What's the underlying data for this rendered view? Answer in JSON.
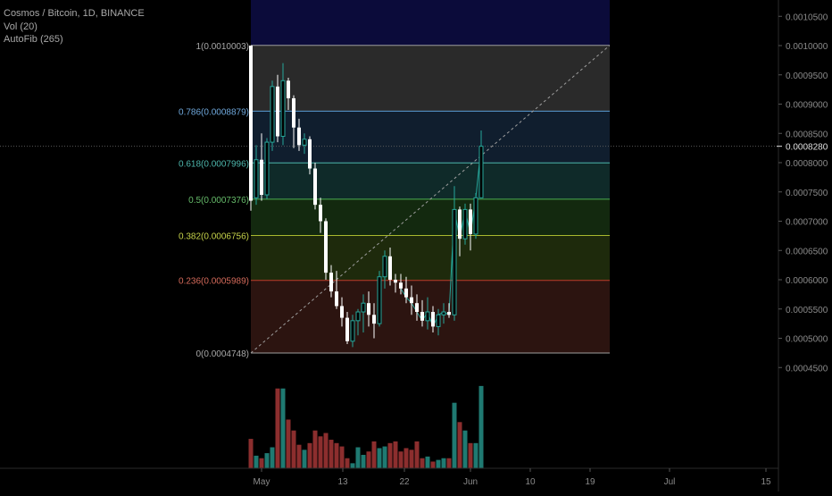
{
  "legend": {
    "symbol_line": "Cosmos / Bitcoin, 1D, BINANCE",
    "volume_line": "Vol (20)",
    "autofib_line": "AutoFib (265)"
  },
  "colors": {
    "background": "#000000",
    "candle_up": "#26a69a",
    "candle_down": "#ffffff",
    "volume_up": "#1f7a72",
    "volume_down": "#8c2e2e",
    "axis_text": "#8a8a8a"
  },
  "chart_data": {
    "type": "candlestick",
    "symbol": "Cosmos / Bitcoin",
    "interval": "1D",
    "exchange": "BINANCE",
    "ylim": [
      0.00042,
      0.00106
    ],
    "y_ticks": [
      "0.0004500",
      "0.0005000",
      "0.0005500",
      "0.0006000",
      "0.0006500",
      "0.0007000",
      "0.0007500",
      "0.0008000",
      "0.0008500",
      "0.0009000",
      "0.0009500",
      "0.0010000",
      "0.0010500"
    ],
    "x_ticks": [
      "May",
      "13",
      "22",
      "Jun",
      "10",
      "19",
      "Jul",
      "15"
    ],
    "last_price_label": "0.0008280",
    "last_price": 0.000828,
    "fib_levels": [
      {
        "label": "1(0.0010003)",
        "value": 0.0010003,
        "label_color": "#a8a8a8",
        "line_color": "#9e9e9e",
        "zone_color": "#2a2a2a"
      },
      {
        "label": "0.786(0.0008879)",
        "value": 0.0008879,
        "label_color": "#6fa8dc",
        "line_color": "#5a9bd4",
        "zone_color": "#101e2e"
      },
      {
        "label": "0.618(0.0007996)",
        "value": 0.0007996,
        "label_color": "#4db6ac",
        "line_color": "#4db6ac",
        "zone_color": "#0f2a29"
      },
      {
        "label": "0.5(0.0007376)",
        "value": 0.0007376,
        "label_color": "#66bb6a",
        "line_color": "#4caf50",
        "zone_color": "#13290f"
      },
      {
        "label": "0.382(0.0006756)",
        "value": 0.0006756,
        "label_color": "#c6d34a",
        "line_color": "#a8b82e",
        "zone_color": "#1e2a0c"
      },
      {
        "label": "0.236(0.0005989)",
        "value": 0.0005989,
        "label_color": "#d46a5a",
        "line_color": "#c0392b",
        "zone_color": "#2c1410"
      },
      {
        "label": "0(0.0004748)",
        "value": 0.0004748,
        "label_color": "#a8a8a8",
        "line_color": "#9e9e9e",
        "zone_color": "#0b0b3a"
      }
    ],
    "candles": [
      {
        "o": 0.001,
        "h": 0.001,
        "l": 0.000718,
        "c": 0.000735,
        "v": 0.35
      },
      {
        "o": 0.00074,
        "h": 0.00083,
        "l": 0.000728,
        "c": 0.000805,
        "v": 0.15
      },
      {
        "o": 0.000805,
        "h": 0.00085,
        "l": 0.000735,
        "c": 0.000745,
        "v": 0.12
      },
      {
        "o": 0.000745,
        "h": 0.000842,
        "l": 0.000738,
        "c": 0.000835,
        "v": 0.18
      },
      {
        "o": 0.000835,
        "h": 0.00094,
        "l": 0.00082,
        "c": 0.00093,
        "v": 0.25
      },
      {
        "o": 0.00093,
        "h": 0.00095,
        "l": 0.000835,
        "c": 0.000845,
        "v": 0.95
      },
      {
        "o": 0.000845,
        "h": 0.00097,
        "l": 0.00083,
        "c": 0.00094,
        "v": 0.95
      },
      {
        "o": 0.00094,
        "h": 0.000945,
        "l": 0.00089,
        "c": 0.00091,
        "v": 0.58
      },
      {
        "o": 0.00091,
        "h": 0.000915,
        "l": 0.000825,
        "c": 0.00086,
        "v": 0.45
      },
      {
        "o": 0.00086,
        "h": 0.000875,
        "l": 0.00082,
        "c": 0.00083,
        "v": 0.28
      },
      {
        "o": 0.00083,
        "h": 0.00085,
        "l": 0.000815,
        "c": 0.00084,
        "v": 0.22
      },
      {
        "o": 0.00084,
        "h": 0.000845,
        "l": 0.00078,
        "c": 0.00079,
        "v": 0.3
      },
      {
        "o": 0.00079,
        "h": 0.0008,
        "l": 0.00072,
        "c": 0.000728,
        "v": 0.45
      },
      {
        "o": 0.000728,
        "h": 0.00074,
        "l": 0.00068,
        "c": 0.0007,
        "v": 0.38
      },
      {
        "o": 0.0007,
        "h": 0.000705,
        "l": 0.0006,
        "c": 0.000612,
        "v": 0.42
      },
      {
        "o": 0.000612,
        "h": 0.000625,
        "l": 0.00057,
        "c": 0.00058,
        "v": 0.34
      },
      {
        "o": 0.00058,
        "h": 0.000615,
        "l": 0.00055,
        "c": 0.000555,
        "v": 0.3
      },
      {
        "o": 0.000555,
        "h": 0.00057,
        "l": 0.00052,
        "c": 0.000535,
        "v": 0.26
      },
      {
        "o": 0.000535,
        "h": 0.000545,
        "l": 0.00049,
        "c": 0.000495,
        "v": 0.12
      },
      {
        "o": 0.000495,
        "h": 0.00054,
        "l": 0.000485,
        "c": 0.00053,
        "v": 0.06
      },
      {
        "o": 0.00053,
        "h": 0.00055,
        "l": 0.000505,
        "c": 0.000545,
        "v": 0.25
      },
      {
        "o": 0.000545,
        "h": 0.000575,
        "l": 0.00051,
        "c": 0.00056,
        "v": 0.16
      },
      {
        "o": 0.00056,
        "h": 0.00058,
        "l": 0.00052,
        "c": 0.00054,
        "v": 0.2
      },
      {
        "o": 0.00054,
        "h": 0.00056,
        "l": 0.0005,
        "c": 0.000525,
        "v": 0.32
      },
      {
        "o": 0.000525,
        "h": 0.000615,
        "l": 0.00052,
        "c": 0.000605,
        "v": 0.24
      },
      {
        "o": 0.000605,
        "h": 0.00065,
        "l": 0.000585,
        "c": 0.00064,
        "v": 0.26
      },
      {
        "o": 0.00064,
        "h": 0.000655,
        "l": 0.00059,
        "c": 0.0006,
        "v": 0.3
      },
      {
        "o": 0.0006,
        "h": 0.00061,
        "l": 0.000578,
        "c": 0.000595,
        "v": 0.32
      },
      {
        "o": 0.000595,
        "h": 0.00061,
        "l": 0.000575,
        "c": 0.000585,
        "v": 0.2
      },
      {
        "o": 0.000585,
        "h": 0.000605,
        "l": 0.00056,
        "c": 0.00057,
        "v": 0.24
      },
      {
        "o": 0.00057,
        "h": 0.00059,
        "l": 0.00054,
        "c": 0.00056,
        "v": 0.22
      },
      {
        "o": 0.00056,
        "h": 0.000575,
        "l": 0.00053,
        "c": 0.000545,
        "v": 0.32
      },
      {
        "o": 0.000545,
        "h": 0.000565,
        "l": 0.00052,
        "c": 0.00053,
        "v": 0.12
      },
      {
        "o": 0.00053,
        "h": 0.00057,
        "l": 0.000515,
        "c": 0.000545,
        "v": 0.14
      },
      {
        "o": 0.000545,
        "h": 0.000555,
        "l": 0.00051,
        "c": 0.00052,
        "v": 0.08
      },
      {
        "o": 0.00052,
        "h": 0.00055,
        "l": 0.000505,
        "c": 0.00054,
        "v": 0.1
      },
      {
        "o": 0.00054,
        "h": 0.00056,
        "l": 0.000525,
        "c": 0.000545,
        "v": 0.12
      },
      {
        "o": 0.000545,
        "h": 0.00056,
        "l": 0.000535,
        "c": 0.00054,
        "v": 0.12
      },
      {
        "o": 0.00054,
        "h": 0.00076,
        "l": 0.00053,
        "c": 0.00072,
        "v": 0.78
      },
      {
        "o": 0.00072,
        "h": 0.000725,
        "l": 0.00064,
        "c": 0.00067,
        "v": 0.55
      },
      {
        "o": 0.00067,
        "h": 0.00073,
        "l": 0.00066,
        "c": 0.00072,
        "v": 0.45
      },
      {
        "o": 0.00072,
        "h": 0.00073,
        "l": 0.00065,
        "c": 0.000678,
        "v": 0.3
      },
      {
        "o": 0.000678,
        "h": 0.000748,
        "l": 0.00067,
        "c": 0.00074,
        "v": 0.3
      },
      {
        "o": 0.00074,
        "h": 0.000855,
        "l": 0.00074,
        "c": 0.000828,
        "v": 0.98
      }
    ]
  }
}
